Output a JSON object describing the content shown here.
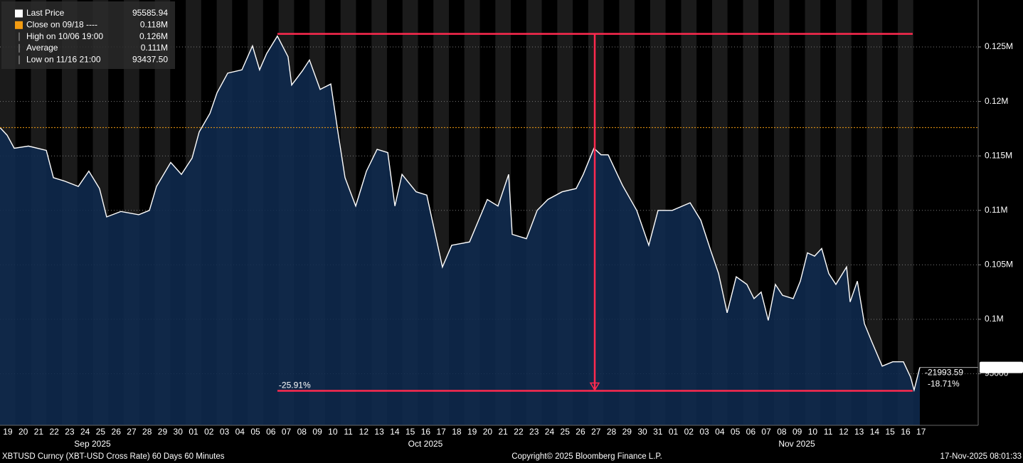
{
  "chart_data": {
    "type": "area",
    "series": [
      {
        "name": "Last Price",
        "color": "#ffffff",
        "x": [
          0,
          0.46,
          0.92,
          1.84,
          2.99,
          3.45,
          4.14,
          5.06,
          5.74,
          6.43,
          6.89,
          7.81,
          8.96,
          9.65,
          10.11,
          11.03,
          11.72,
          12.41,
          12.87,
          13.56,
          14.02,
          14.71,
          15.63,
          16.31,
          16.77,
          17.23,
          17.92,
          18.61,
          18.84,
          19.53,
          19.99,
          20.68,
          21.37,
          21.83,
          22.29,
          22.98,
          23.67,
          24.36,
          25.05,
          25.51,
          25.97,
          26.88,
          27.57,
          28.03,
          28.58,
          29.18,
          30.33,
          31.48,
          32.17,
          32.86,
          33.09,
          34.01,
          34.7,
          35.39,
          36.31,
          37.22,
          37.68,
          38.37,
          38.83,
          39.29,
          40.21,
          41.13,
          41.91,
          42.51,
          43.43,
          44.58,
          45.27,
          45.96,
          46.42,
          46.97,
          47.56,
          48.25,
          48.71,
          49.17,
          49.63,
          50.09,
          50.55,
          51.24,
          51.7,
          52.16,
          52.62,
          53.08,
          53.54,
          54,
          54.69,
          54.92,
          55.38,
          55.84,
          56.3,
          56.99,
          57.67,
          58.36,
          58.82,
          59.05,
          59.42
        ],
        "values": [
          117600,
          116900,
          115700,
          115900,
          115500,
          113000,
          112700,
          112200,
          113600,
          112000,
          109400,
          109900,
          109600,
          110000,
          112200,
          114400,
          113300,
          114800,
          117200,
          118900,
          120800,
          122600,
          122900,
          125100,
          122900,
          124400,
          126000,
          124100,
          121500,
          122800,
          123800,
          121100,
          121600,
          117200,
          113000,
          110400,
          113600,
          115600,
          115300,
          110400,
          113300,
          111700,
          111400,
          108400,
          104800,
          106800,
          107100,
          111000,
          110400,
          113300,
          107800,
          107400,
          110000,
          111000,
          111700,
          112000,
          113300,
          115700,
          115100,
          115100,
          112300,
          110000,
          106800,
          110000,
          110000,
          110700,
          109100,
          106100,
          104200,
          100600,
          103900,
          103200,
          101900,
          102500,
          99900,
          103200,
          102200,
          101900,
          103500,
          106100,
          105800,
          106500,
          104200,
          103200,
          104800,
          101600,
          103500,
          99600,
          98000,
          95700,
          96100,
          96100,
          94700,
          93500,
          95585.94
        ]
      }
    ],
    "xlim": [
      0,
      63.19
    ],
    "ylim": [
      90270,
      129310
    ],
    "xticks": [
      {
        "value": 0.5,
        "label": "19"
      },
      {
        "value": 1.5,
        "label": "20"
      },
      {
        "value": 2.5,
        "label": "21"
      },
      {
        "value": 3.5,
        "label": "22"
      },
      {
        "value": 4.5,
        "label": "23"
      },
      {
        "value": 5.5,
        "label": "24"
      },
      {
        "value": 6.5,
        "label": "25"
      },
      {
        "value": 7.5,
        "label": "26"
      },
      {
        "value": 8.5,
        "label": "27"
      },
      {
        "value": 9.5,
        "label": "28"
      },
      {
        "value": 10.5,
        "label": "29"
      },
      {
        "value": 11.5,
        "label": "30"
      },
      {
        "value": 12.5,
        "label": "01"
      },
      {
        "value": 13.5,
        "label": "02"
      },
      {
        "value": 14.5,
        "label": "03"
      },
      {
        "value": 15.5,
        "label": "04"
      },
      {
        "value": 16.5,
        "label": "05"
      },
      {
        "value": 17.5,
        "label": "06"
      },
      {
        "value": 18.5,
        "label": "07"
      },
      {
        "value": 19.5,
        "label": "08"
      },
      {
        "value": 20.5,
        "label": "09"
      },
      {
        "value": 21.5,
        "label": "10"
      },
      {
        "value": 22.5,
        "label": "11"
      },
      {
        "value": 23.5,
        "label": "12"
      },
      {
        "value": 24.5,
        "label": "13"
      },
      {
        "value": 25.5,
        "label": "14"
      },
      {
        "value": 26.5,
        "label": "15"
      },
      {
        "value": 27.5,
        "label": "16"
      },
      {
        "value": 28.5,
        "label": "17"
      },
      {
        "value": 29.5,
        "label": "18"
      },
      {
        "value": 30.5,
        "label": "19"
      },
      {
        "value": 31.5,
        "label": "20"
      },
      {
        "value": 32.5,
        "label": "21"
      },
      {
        "value": 33.5,
        "label": "22"
      },
      {
        "value": 34.5,
        "label": "23"
      },
      {
        "value": 35.5,
        "label": "24"
      },
      {
        "value": 36.5,
        "label": "25"
      },
      {
        "value": 37.5,
        "label": "26"
      },
      {
        "value": 38.5,
        "label": "27"
      },
      {
        "value": 39.5,
        "label": "28"
      },
      {
        "value": 40.5,
        "label": "29"
      },
      {
        "value": 41.5,
        "label": "30"
      },
      {
        "value": 42.5,
        "label": "31"
      },
      {
        "value": 43.5,
        "label": "01"
      },
      {
        "value": 44.5,
        "label": "02"
      },
      {
        "value": 45.5,
        "label": "03"
      },
      {
        "value": 46.5,
        "label": "04"
      },
      {
        "value": 47.5,
        "label": "05"
      },
      {
        "value": 48.5,
        "label": "06"
      },
      {
        "value": 49.5,
        "label": "07"
      },
      {
        "value": 50.5,
        "label": "08"
      },
      {
        "value": 51.5,
        "label": "09"
      },
      {
        "value": 52.5,
        "label": "10"
      },
      {
        "value": 53.5,
        "label": "11"
      },
      {
        "value": 54.5,
        "label": "12"
      },
      {
        "value": 55.5,
        "label": "13"
      },
      {
        "value": 56.5,
        "label": "14"
      },
      {
        "value": 57.5,
        "label": "15"
      },
      {
        "value": 58.5,
        "label": "16"
      },
      {
        "value": 59.5,
        "label": "17"
      }
    ],
    "yticks": [
      {
        "value": 95000,
        "label": "95000"
      },
      {
        "value": 100000,
        "label": "0.1M"
      },
      {
        "value": 105000,
        "label": "0.105M"
      },
      {
        "value": 110000,
        "label": "0.11M"
      },
      {
        "value": 115000,
        "label": "0.115M"
      },
      {
        "value": 120000,
        "label": "0.12M"
      },
      {
        "value": 125000,
        "label": "0.125M"
      }
    ],
    "months": [
      "Sep 2025",
      "Oct 2025",
      "Nov 2025"
    ],
    "legend": [
      {
        "name": "Last Price",
        "value": 95585.94,
        "value_label": "95585.94",
        "color": "#ffffff"
      },
      {
        "name": "Close on 09/18 ----",
        "value": 117600,
        "value_label": "0.118M",
        "color": "#f39c12"
      },
      {
        "name": "High on 10/06 19:00",
        "value": 126200,
        "value_label": "0.126M",
        "color": "#aaaaaa"
      },
      {
        "name": "Average",
        "value": 111000,
        "value_label": "0.111M",
        "color": "#aaaaaa"
      },
      {
        "name": "Low on 11/16 21:00",
        "value": 93437.5,
        "value_label": "93437.50",
        "color": "#aaaaaa"
      }
    ],
    "measure": {
      "x_start": 17.92,
      "x_end": 58.96,
      "arrow_x": 38.42,
      "color": "#ff2a4f",
      "pct_label": "-25.91%",
      "change_label": "-21993.59",
      "change_pct_label": "-18.71%"
    },
    "footer": {
      "left": "XBTUSD Curncy (XBT-USD Cross Rate) 60 Days 60 Minutes",
      "center": "Copyright© 2025 Bloomberg Finance L.P.",
      "right": "17-Nov-2025 08:01:33"
    }
  }
}
